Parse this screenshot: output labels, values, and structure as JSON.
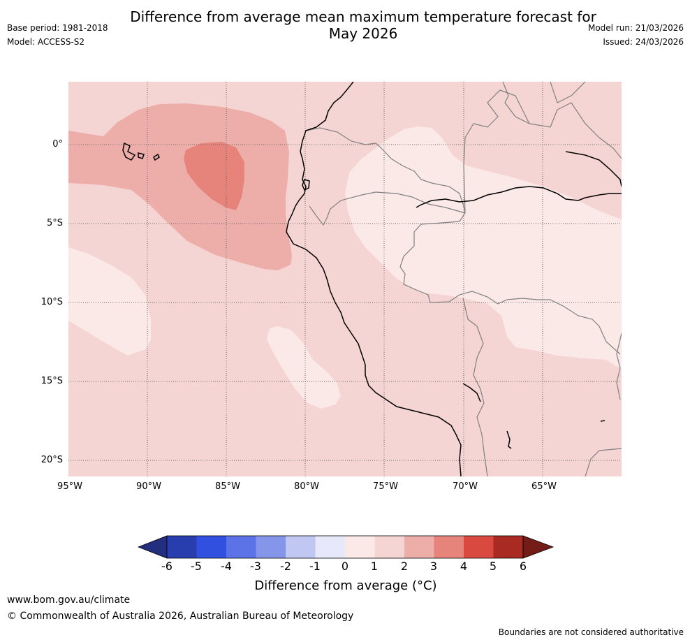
{
  "header": {
    "title_line1": "Difference from average mean maximum temperature forecast for",
    "title_line2": "May 2026",
    "base_period": "Base period: 1981-2018",
    "model": "Model: ACCESS-S2",
    "model_run": "Model run: 21/03/2026",
    "issued": "Issued: 24/03/2026"
  },
  "map": {
    "latitude_labels": [
      "0°",
      "5°S",
      "10°S",
      "15°S",
      "20°S"
    ],
    "longitude_labels": [
      "95°W",
      "90°W",
      "85°W",
      "80°W",
      "75°W",
      "70°W",
      "65°W"
    ],
    "colors": {
      "range_0_1": "#fbe9e8",
      "range_1_2": "#f5d5d3",
      "range_2_3": "#edaeaa",
      "range_3_4": "#e6837b",
      "coast": "#000000",
      "border": "#808080",
      "grid": "#666666"
    }
  },
  "colorbar": {
    "ticks": [
      "-6",
      "-5",
      "-4",
      "-3",
      "-2",
      "-1",
      "0",
      "1",
      "2",
      "3",
      "4",
      "5",
      "6"
    ],
    "colors": [
      "#232e7e",
      "#283eae",
      "#3250e0",
      "#5b73e6",
      "#8595ea",
      "#c0c7f2",
      "#e7e9fb",
      "#fbe9e8",
      "#f5d5d3",
      "#edaeaa",
      "#e6837b",
      "#d9493f",
      "#a82a22",
      "#741c17"
    ],
    "title": "Difference from average (°C)"
  },
  "footer": {
    "website": "www.bom.gov.au/climate",
    "copyright": "© Commonwealth of Australia 2026, Australian Bureau of Meteorology",
    "disclaimer": "Boundaries are not considered authoritative"
  }
}
